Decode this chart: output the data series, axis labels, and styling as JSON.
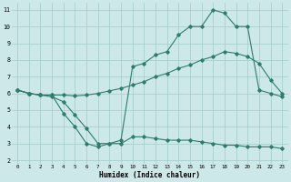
{
  "xlabel": "Humidex (Indice chaleur)",
  "x": [
    0,
    1,
    2,
    3,
    4,
    5,
    6,
    7,
    8,
    9,
    10,
    11,
    12,
    13,
    14,
    15,
    16,
    17,
    18,
    19,
    20,
    21,
    22,
    23
  ],
  "line1": [
    6.2,
    6.0,
    5.9,
    5.9,
    5.9,
    5.85,
    5.9,
    6.0,
    6.15,
    6.3,
    6.5,
    6.7,
    7.0,
    7.2,
    7.5,
    7.7,
    8.0,
    8.2,
    8.5,
    8.4,
    8.2,
    7.8,
    6.8,
    6.0
  ],
  "line2": [
    6.2,
    6.0,
    5.9,
    5.9,
    4.8,
    4.0,
    3.0,
    2.8,
    3.0,
    3.2,
    7.6,
    7.8,
    8.3,
    8.5,
    9.5,
    10.0,
    10.0,
    11.0,
    10.8,
    10.0,
    10.0,
    6.2,
    6.0,
    5.8
  ],
  "line3": [
    6.2,
    6.0,
    5.9,
    5.8,
    5.5,
    4.7,
    3.9,
    3.0,
    3.0,
    3.0,
    3.4,
    3.4,
    3.3,
    3.2,
    3.2,
    3.2,
    3.1,
    3.0,
    2.9,
    2.9,
    2.8,
    2.8,
    2.8,
    2.7
  ],
  "line_color": "#2d7d6b",
  "bg_color": "#cce8e8",
  "grid_color": "#aacece",
  "ylim": [
    2,
    11
  ],
  "xlim": [
    -0.5,
    23.5
  ],
  "yticks": [
    2,
    3,
    4,
    5,
    6,
    7,
    8,
    9,
    10,
    11
  ],
  "xticks": [
    0,
    1,
    2,
    3,
    4,
    5,
    6,
    7,
    8,
    9,
    10,
    11,
    12,
    13,
    14,
    15,
    16,
    17,
    18,
    19,
    20,
    21,
    22,
    23
  ]
}
